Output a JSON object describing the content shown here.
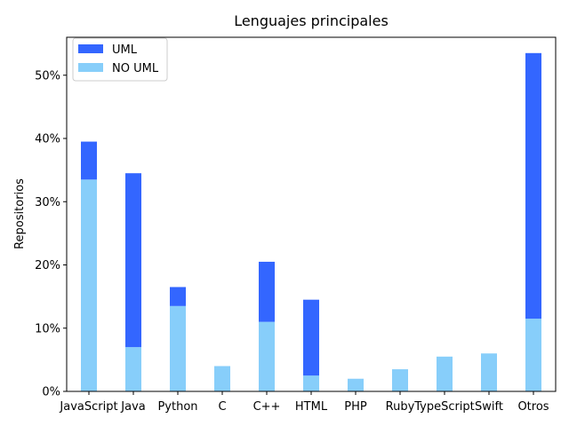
{
  "chart_data": {
    "type": "bar",
    "stacked": true,
    "title": "Lenguajes principales",
    "xlabel": "",
    "ylabel": "Repositorios",
    "categories": [
      "JavaScript",
      "Java",
      "Python",
      "C",
      "C++",
      "HTML",
      "PHP",
      "Ruby",
      "TypeScript",
      "Swift",
      "Otros"
    ],
    "series": [
      {
        "name": "NO UML",
        "color": "#87cefa",
        "values": [
          33.5,
          7.0,
          13.5,
          4.0,
          11.0,
          2.5,
          2.0,
          3.5,
          5.5,
          6.0,
          11.5
        ]
      },
      {
        "name": "UML",
        "color": "#3366ff",
        "values": [
          6.0,
          27.5,
          3.0,
          0.0,
          9.5,
          12.0,
          0.0,
          0.0,
          0.0,
          0.0,
          42.0
        ]
      }
    ],
    "ylim": [
      0,
      56
    ],
    "yticks": [
      0,
      10,
      20,
      30,
      40,
      50
    ],
    "ytick_labels": [
      "0%",
      "10%",
      "20%",
      "30%",
      "40%",
      "50%"
    ],
    "legend": {
      "position": "top-left",
      "order": [
        "UML",
        "NO UML"
      ]
    },
    "grid": false
  }
}
